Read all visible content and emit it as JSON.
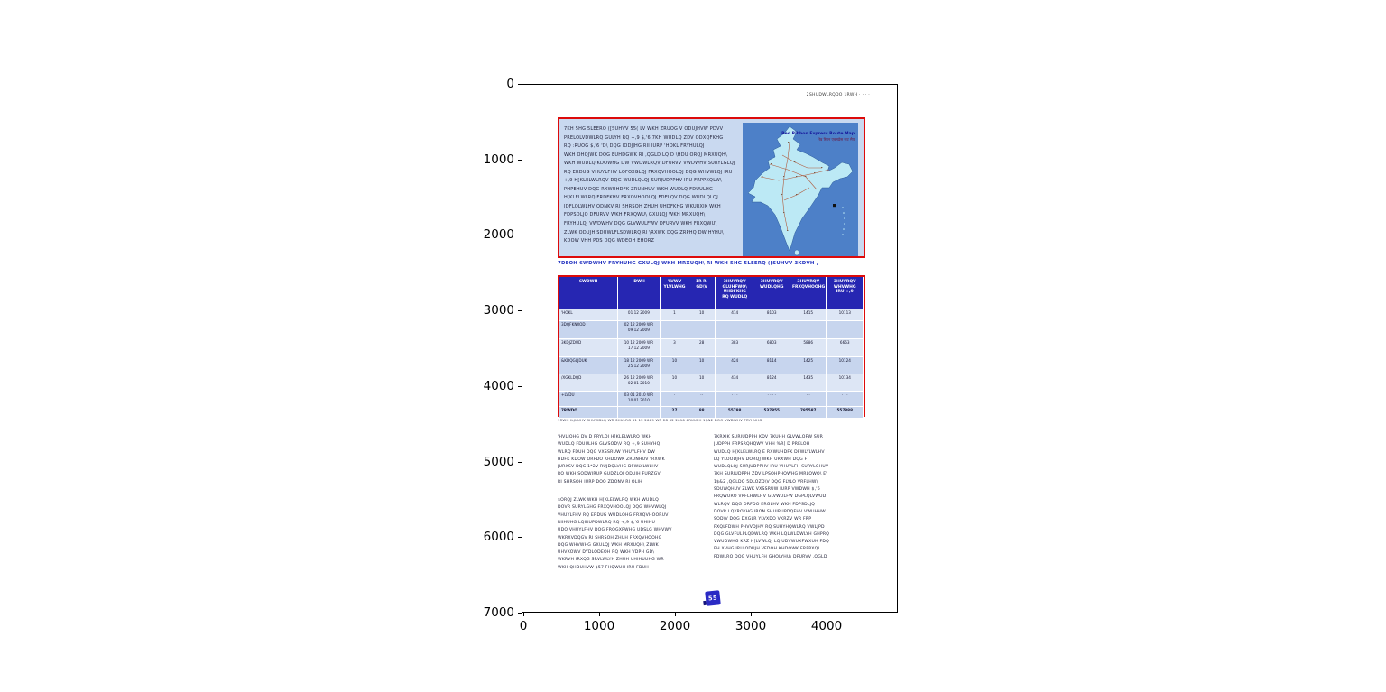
{
  "figure": {
    "x_ticks": [
      "0",
      "1000",
      "2000",
      "3000",
      "4000"
    ],
    "y_ticks": [
      "0",
      "1000",
      "2000",
      "3000",
      "4000",
      "5000",
      "6000",
      "7000"
    ]
  },
  "page": {
    "header_right": "2SHUDWLRQDO  1RWH   ·   ·   ·   ·",
    "intro_box_lines": [
      "7KH 5HG 5LEERQ ([SUHVV  55(   LV  WKH  ZRUOG V  ODUJHVW  PDVV",
      "PRELOLVDWLRQ  GULYH  RQ  +,9 $,'6   7KH  WUDLQ  ZDV  ODXQFKHG",
      "RQ  :RUOG  $,'6  'D\\  DQG  IODJJHG  RII  IURP  'HOKL  FRYHULQJ",
      "WKH  OHQJWK  DQG  EUHDGWK  RI  ,QGLD  LQ  D  \\HDU ORQJ  MRXUQH\\",
      "WKH  WUDLQ  KDOWHG  DW  VWDWLRQV  DFURVV  VWDWHV  SURYLGLQJ",
      "RQ ERDUG  VHUYLFHV  LQFOXGLQJ  FRXQVHOOLQJ  DQG  WHVWLQJ  IRU",
      "+,9   H[KLELWLRQV  DQG  WUDLQLQJ  SURJUDPPHV  IRU  FRPPXQLW\\",
      "PHPEHUV  DQG  RXWUHDFK  ZRUNHUV   WKH  WUDLQ  FDUULHG",
      "H[KLELWLRQ  FRDFKHV   FRXQVHOOLQJ  FDELQV  DQG  WUDLQLQJ",
      "IDFLOLWLHV   ODNKV  RI  SHRSOH  ZHUH  UHDFKHG  WKURXJK  WKH",
      "FDPSDLJQ  DFURVV  WKH  FRXQWU\\  GXULQJ  WKH  MRXUQH\\",
      "FRYHULQJ  VWDWHV  DQG  GLVWULFWV  DFURVV  WKH  FRXQWU\\",
      "ZLWK  ODUJH  SDUWLFLSDWLRQ  RI  \\RXWK  DQG  ZRPHQ  DW  HYHU\\",
      "KDOW   VHH  PDS  DQG  WDEOH  EHORZ"
    ],
    "map": {
      "title_line1": "Red Ribbon Express Route Map",
      "title_line2": "रेड रिबन एक्सप्रेस रूट मैप"
    },
    "table_caption": "7DEOH      6WDWHV  FRYHUHG  GXULQJ  WKH  MRXUQH\\  RI  WKH  5HG  5LEERQ  ([SUHVV  3KDVH  ,",
    "table": {
      "headers": [
        [
          "6WDWH"
        ],
        [
          "'DWH"
        ],
        [
          "'LVWV",
          "YLVLWHG"
        ],
        [
          "1R RI",
          "GD\\V"
        ],
        [
          "3HUVRQV",
          "GLUHFWO\\",
          "UHDFKHG",
          "RQ WUDLQ"
        ],
        [
          "3HUVRQV",
          "WUDLQHG"
        ],
        [
          "3HUVRQV",
          "FRXQVHOOHG"
        ],
        [
          "3HUVRQV",
          "WHVWHG",
          "IRU +,9"
        ]
      ],
      "rows": [
        {
          "state": "'HOKL",
          "date": [
            "01 12 2009"
          ],
          "values": [
            "1",
            "10",
            "414",
            "8103",
            "1415",
            "10113"
          ]
        },
        {
          "state": "3DQFKNXOD",
          "date": [
            "02 12 2009 WR",
            "09 12 2009"
          ],
          "values": [
            "",
            "",
            "",
            "",
            "",
            ""
          ]
        },
        {
          "state": "3KDJZDUD",
          "date": [
            "10 12 2009 WR",
            "17 12 2009"
          ],
          "values": [
            "3",
            "28",
            "383",
            "6803",
            "5886",
            "6663"
          ]
        },
        {
          "state": "&KDQGLJDUK",
          "date": [
            "18 12 2009 WR",
            "25 12 2009"
          ],
          "values": [
            "10",
            "10",
            "424",
            "8114",
            "1425",
            "10124"
          ]
        },
        {
          "state": "/XGKLDQD",
          "date": [
            "26 12 2009 WR",
            "02 01 2010"
          ],
          "values": [
            "10",
            "10",
            "434",
            "8124",
            "1435",
            "10134"
          ]
        },
        {
          "state": "+LVDU",
          "date": [
            "03 01 2010 WR",
            "10 01 2010"
          ],
          "values": [
            "·",
            "··",
            "· · ·",
            "· · · ·",
            "· ·",
            "· · ·"
          ]
        }
      ],
      "total_row": {
        "state": "7RWDO",
        "date": [
          ""
        ],
        "values": [
          "27",
          "88",
          "55788",
          "537855",
          "785587",
          "557888"
        ]
      }
    },
    "footnote": "1RWH   ILJXUHV  SHUWDLQ  WR  SHULRG  01 12 2009  WR  28 02 2010   6RXUFH   1$&2   DOO  VWDWHV  FRYHUHG",
    "left_col": {
      "para1_lines": [
        "'HVLJQHG  DV  D  PRYLQJ  H[KLELWLRQ   WKH",
        "WUDLQ  FDUULHG  GLVSOD\\V  RQ  +,9  SUHYHQ",
        "WLRQ   FDUH  DQG  VXSSRUW  VHUYLFHV   DW",
        "HDFK  KDOW   ORFDO  KHDOWK  ZRUNHUV   \\RXWK",
        "JURXSV  DQG  1*2V  RUJDQLVHG  DFWLYLWLHV",
        "RQ  WKH  SODWIRUP  GUDZLQJ  ODUJH  FURZGV",
        "RI  SHRSOH  IURP  DOO  ZDONV  RI  OLIH"
      ],
      "para2_lines": [
        "$ORQJ  ZLWK  WKH  H[KLELWLRQ   WKH  WUDLQ",
        "DOVR  SURYLGHG  FRXQVHOOLQJ  DQG  WHVWLQJ",
        "VHUYLFHV  RQ  ERDUG   WUDLQHG  FRXQVHOORUV",
        "RIIHUHG  LQIRUPDWLRQ  RQ  +,9 $,'6   UHIHU",
        "UDO  VHUYLFHV  DQG  FRQGXFWHG  UDSLG  WHVWV",
        "WKRXVDQGV  RI  SHRSOH  ZHUH  FRXQVHOOHG",
        "DQG  WHVWHG  GXULQJ  WKH  MRXUQH\\   ZLWK",
        "UHVXOWV  DYDLODEOH  RQ  WKH  VDPH  GD\\",
        "WKRVH  IRXQG  SRVLWLYH  ZHUH  UHIHUUHG  WR",
        "WKH  QHDUHVW  $57  FHQWUH  IRU  FDUH"
      ]
    },
    "right_col": {
      "lines": [
        "7KRXJK  SURJUDPPH  KDV  7KUHH  GLVWLQFW  SUR",
        "JUDPPH  FRPSRQHQWV   VHH  %R[      D  PRELOH",
        "WUDLQ  H[KLELWLRQ   E   RXWUHDFK  DFWLYLWLHV",
        "LQ  YLOODJHV  DORQJ  WKH  URXWH  DQG   F",
        "WUDLQLQJ  SURJUDPPHV  IRU  VHUYLFH  SURYLGHUV",
        "7KH  SURJUDPPH  ZDV  LPSOHPHQWHG  MRLQWO\\  E\\",
        "1$&2   ,QGLDQ  5DLOZD\\V  DQG  FLYLO  VRFLHW\\",
        "SDUWQHUV   ZLWK  VXSSRUW  IURP  VWDWH  $,'6",
        "FRQWURO  VRFLHWLHV   GLVWULFW  DGPLQLVWUD",
        "WLRQV  DQG  ORFDO  ERGLHV   WKH  FDPSDLJQ",
        "DOVR  LQYROYHG  IRON  SHUIRUPDQFHV   VWUHHW",
        "SOD\\V  DQG  DXGLR  YLVXDO  VKRZV  WR  FRP",
        "PXQLFDWH  PHVVDJHV  RQ  SUHYHQWLRQ   VWLJPD",
        "DQG  GLVFULPLQDWLRQ   WKH  LQLWLDWLYH  GHPRQ",
        "VWUDWHG  KRZ  H[LVWLQJ  LQIUDVWUXFWXUH  FDQ",
        "EH  XVHG  IRU  ODUJH  VFDOH  KHDOWK  FRPPXQL",
        "FDWLRQ  DQG  VHUYLFH  GHOLYHU\\  DFURVV  ,QGLD"
      ]
    },
    "page_badge": "55"
  },
  "colors": {
    "border_red": "#dd0b0b",
    "table_header_blue": "#2626b2",
    "row_light": "#dde6f5",
    "row_dark": "#c7d5ee",
    "intro_bg": "#c9d9f0",
    "map_bg": "#4d80c8",
    "map_land": "#bce9f5",
    "caption_blue": "#2433c0",
    "badge_blue": "#2a2ac4"
  }
}
